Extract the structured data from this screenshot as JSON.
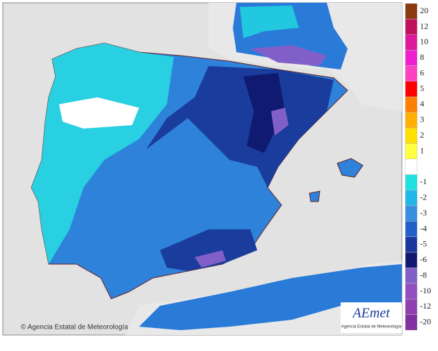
{
  "legend": {
    "entries": [
      {
        "label": "20",
        "color": "#8b3a0f"
      },
      {
        "label": "12",
        "color": "#c0105a"
      },
      {
        "label": "10",
        "color": "#e0189a"
      },
      {
        "label": "8",
        "color": "#f020d0"
      },
      {
        "label": "6",
        "color": "#ff40c0"
      },
      {
        "label": "5",
        "color": "#ff0000"
      },
      {
        "label": "4",
        "color": "#ff8000"
      },
      {
        "label": "3",
        "color": "#ffb000"
      },
      {
        "label": "2",
        "color": "#ffe000"
      },
      {
        "label": "1",
        "color": "#ffff40"
      },
      {
        "color": "#ffffff"
      },
      {
        "label": "-1",
        "color": "#20e0e0"
      },
      {
        "label": "-2",
        "color": "#20b8e8"
      },
      {
        "label": "-3",
        "color": "#3890e0"
      },
      {
        "label": "-4",
        "color": "#2060c8"
      },
      {
        "label": "-5",
        "color": "#1838a0"
      },
      {
        "label": "-6",
        "color": "#101870"
      },
      {
        "label": "-8",
        "color": "#8060c8"
      },
      {
        "label": "-10",
        "color": "#9050c0"
      },
      {
        "label": "-12",
        "color": "#9040b0"
      },
      {
        "label": "-20",
        "color": "#8030a0"
      }
    ]
  },
  "footer": {
    "copyright": "© Agencia Estatal de Meteorología"
  },
  "logo": {
    "name": "AEmet",
    "subtitle": "Agencia Estatal de Meteorología"
  }
}
